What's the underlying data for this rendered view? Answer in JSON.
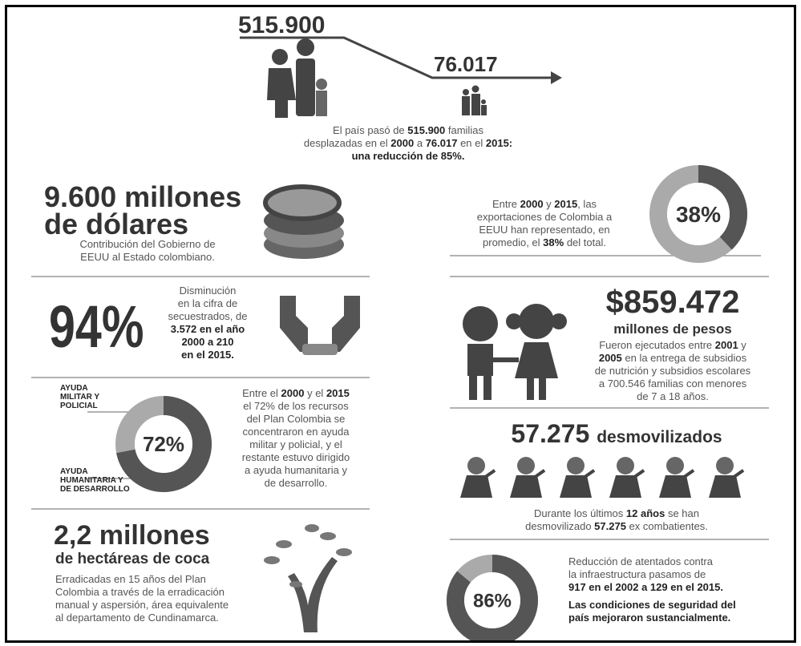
{
  "top": {
    "from": "515.900",
    "to": "76.017",
    "caption": [
      [
        "El país pasó de ",
        "515.900",
        " familias"
      ],
      [
        "desplazadas en el ",
        "2000",
        " a ",
        "76.017",
        " en el ",
        "2015:"
      ],
      [
        "una reducción de 85%."
      ]
    ]
  },
  "aid": {
    "title": [
      "9.600 millones",
      "de dólares"
    ],
    "text": [
      "Contribución del Gobierno de",
      "EEUU al Estado colombiano."
    ]
  },
  "kidnap": {
    "value": "94%",
    "text": [
      [
        "Disminución"
      ],
      [
        "en la cifra de"
      ],
      [
        "secuestrados, de"
      ],
      [
        "3.572 en el año"
      ],
      [
        "2000 a 210"
      ],
      [
        "en el 2015."
      ]
    ]
  },
  "plan": {
    "donut": {
      "value": 72,
      "label": "72%"
    },
    "label_military": [
      "AYUDA",
      "MILITAR Y",
      "POLICIAL"
    ],
    "label_humanitarian": [
      "AYUDA",
      "HUMANITARIA Y",
      "DE DESARROLLO"
    ],
    "text": [
      [
        "Entre el ",
        "2000",
        " y el ",
        "2015"
      ],
      [
        "el 72% de los recursos"
      ],
      [
        "del Plan Colombia se"
      ],
      [
        "concentraron en ayuda"
      ],
      [
        "militar y policial, y el"
      ],
      [
        "restante estuvo dirigido"
      ],
      [
        "a ayuda humanitaria y"
      ],
      [
        "de desarrollo."
      ]
    ]
  },
  "coca": {
    "title": "2,2 millones",
    "subtitle": "de hectáreas de coca",
    "text": [
      "Erradicadas en 15 años del Plan",
      "Colombia a través de la erradicación",
      "manual y aspersión, área equivalente",
      "al departamento de Cundinamarca."
    ]
  },
  "exports": {
    "donut": {
      "value": 38,
      "label": "38%"
    },
    "text": [
      [
        "Entre ",
        "2000",
        " y ",
        "2015",
        ", las"
      ],
      [
        "exportaciones de Colombia a"
      ],
      [
        "EEUU han representado, en"
      ],
      [
        "promedio, el ",
        "38%",
        " del total."
      ]
    ]
  },
  "subsidies": {
    "title": "$859.472",
    "subtitle": "millones de pesos",
    "text": [
      [
        "Fueron ejecutados entre ",
        "2001",
        " y"
      ],
      [
        "2005",
        " en la entrega de subsidios"
      ],
      [
        "de nutrición y subsidios escolares"
      ],
      [
        "a 700.546 familias con menores"
      ],
      [
        "de 7 a 18 años."
      ]
    ]
  },
  "demob": {
    "title": "57.275",
    "title_word": "desmovilizados",
    "text": [
      [
        "Durante los últimos ",
        "12 años",
        " se han"
      ],
      [
        "desmovilizado ",
        "57.275",
        " ex combatientes."
      ]
    ]
  },
  "attacks": {
    "donut": {
      "value": 86,
      "label": "86%"
    },
    "text": [
      [
        "Reducción de atentados contra"
      ],
      [
        "la infraestructura pasamos de"
      ],
      [
        "917 en el 2002 a 129 en el 2015."
      ]
    ],
    "bold_text": [
      "Las condiciones de seguridad del",
      "país mejoraron sustancialmente."
    ]
  }
}
